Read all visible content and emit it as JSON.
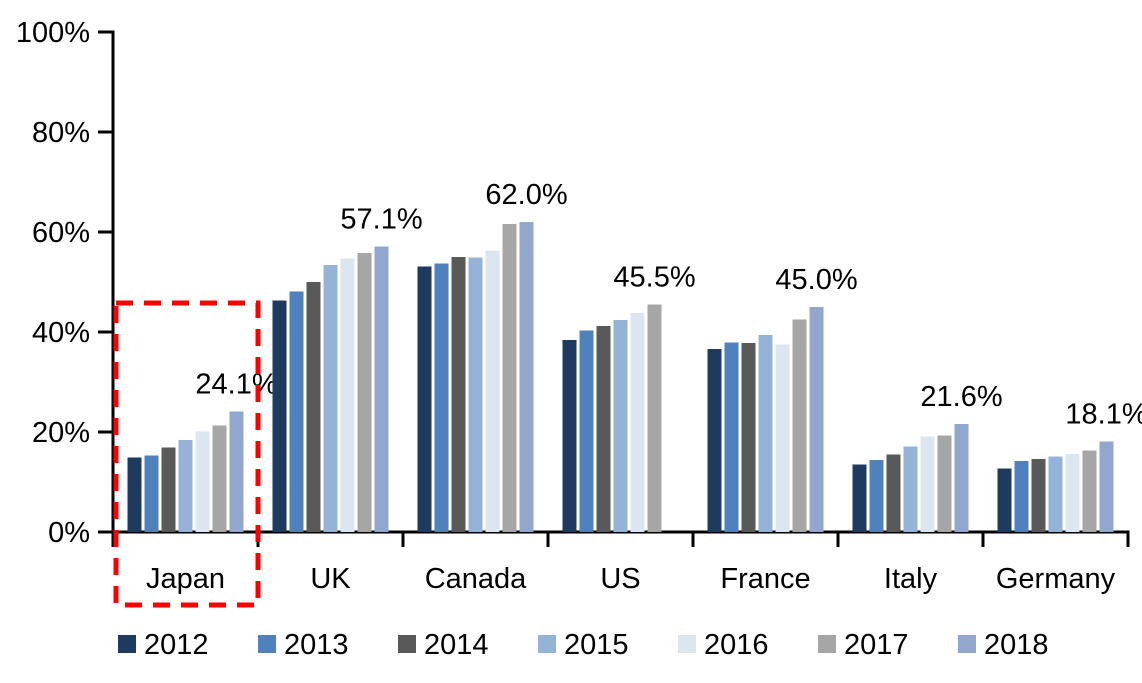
{
  "chart_data": {
    "type": "bar",
    "title": "",
    "xlabel": "",
    "ylabel": "",
    "categories": [
      "Japan",
      "UK",
      "Canada",
      "US",
      "France",
      "Italy",
      "Germany"
    ],
    "series": [
      {
        "name": "2012",
        "color": "#1F3A5F",
        "values": [
          14.9,
          46.3,
          53.1,
          38.4,
          36.6,
          13.5,
          12.7
        ]
      },
      {
        "name": "2013",
        "color": "#4F81BD",
        "values": [
          15.3,
          48.1,
          53.7,
          40.3,
          37.9,
          14.4,
          14.2
        ]
      },
      {
        "name": "2014",
        "color": "#595959",
        "values": [
          16.9,
          50.0,
          55.0,
          41.2,
          37.8,
          15.5,
          14.6
        ]
      },
      {
        "name": "2015",
        "color": "#95B3D7",
        "values": [
          18.4,
          53.4,
          54.9,
          42.4,
          39.4,
          17.1,
          15.1
        ]
      },
      {
        "name": "2016",
        "color": "#DCE6F1",
        "values": [
          20.1,
          54.7,
          56.3,
          43.8,
          37.5,
          19.1,
          15.6
        ]
      },
      {
        "name": "2017",
        "color": "#A6A6A6",
        "values": [
          21.3,
          55.8,
          61.6,
          45.5,
          42.5,
          19.3,
          16.3
        ]
      },
      {
        "name": "2018",
        "color": "#93A7CE",
        "values": [
          24.1,
          57.1,
          62.0,
          null,
          45.0,
          21.6,
          18.1
        ]
      }
    ],
    "data_labels": [
      "24.1%",
      "57.1%",
      "62.0%",
      "45.5%",
      "45.0%",
      "21.6%",
      "18.1%"
    ],
    "y_axis": {
      "min": 0,
      "max": 100,
      "ticks": [
        {
          "label": "0%",
          "value": 0
        },
        {
          "label": "20%",
          "value": 20
        },
        {
          "label": "40%",
          "value": 40
        },
        {
          "label": "60%",
          "value": 60
        },
        {
          "label": "80%",
          "value": 80
        },
        {
          "label": "100%",
          "value": 100
        }
      ]
    },
    "grid": false,
    "legend": {
      "position": "bottom",
      "items": [
        "2012",
        "2013",
        "2014",
        "2015",
        "2016",
        "2017",
        "2018"
      ]
    },
    "highlight": {
      "category": "Japan",
      "shape": "dashed-rectangle",
      "color": "#FF0000"
    }
  }
}
